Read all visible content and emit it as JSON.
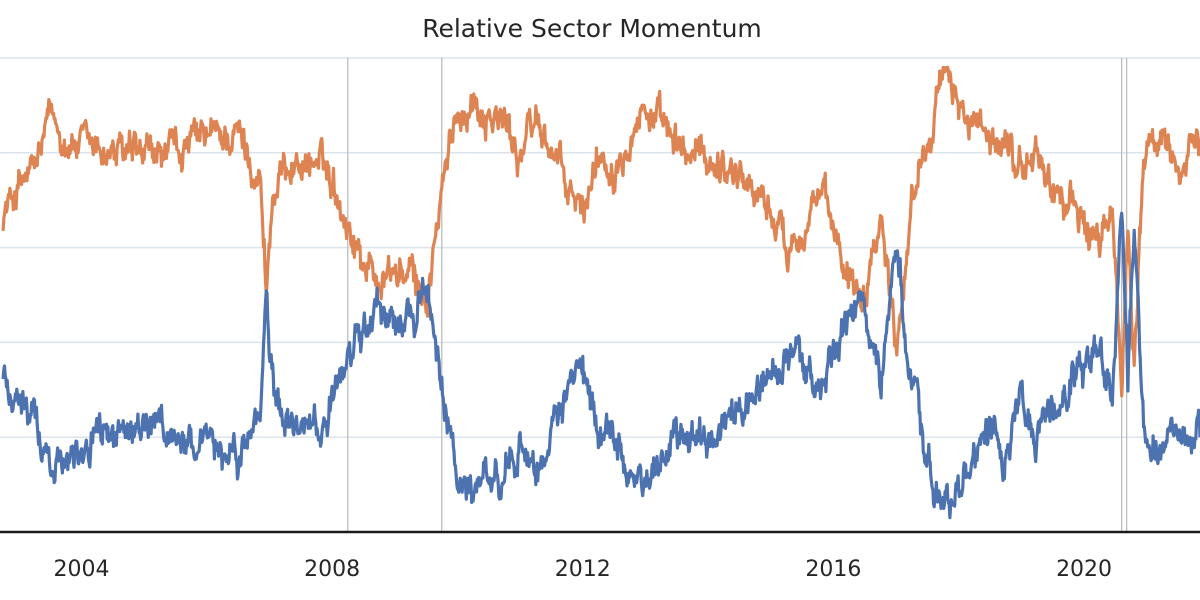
{
  "chart_data": {
    "type": "line",
    "title": "Relative Sector Momentum",
    "xlabel": "",
    "ylabel": "",
    "xlim": [
      2002.7,
      2021.85
    ],
    "ylim": [
      0,
      1
    ],
    "x_ticks": [
      "2004",
      "2008",
      "2012",
      "2016",
      "2020"
    ],
    "grid": true,
    "legend": "none",
    "vlines": [
      2008.25,
      2009.75,
      2020.6,
      2020.68
    ],
    "colors": {
      "orange": "#dd8452",
      "blue": "#4c72b0",
      "grid": "#dbe3ec",
      "vline": "#b8b8b8",
      "axis": "#1a1a1a"
    },
    "series": [
      {
        "color": "orange",
        "x": [
          2002.75,
          2003.0,
          2003.25,
          2003.5,
          2003.75,
          2004.0,
          2004.5,
          2005.0,
          2005.5,
          2006.0,
          2006.5,
          2006.85,
          2006.95,
          2007.05,
          2007.3,
          2007.75,
          2008.0,
          2008.4,
          2008.75,
          2009.0,
          2009.3,
          2009.5,
          2009.75,
          2010.0,
          2010.25,
          2010.75,
          2011.0,
          2011.25,
          2011.5,
          2011.75,
          2012.0,
          2012.25,
          2012.5,
          2012.75,
          2013.0,
          2013.25,
          2013.5,
          2014.0,
          2014.5,
          2015.0,
          2015.25,
          2015.5,
          2015.75,
          2016.0,
          2016.25,
          2016.5,
          2016.75,
          2017.0,
          2017.25,
          2017.5,
          2017.75,
          2018.0,
          2018.25,
          2018.5,
          2018.75,
          2019.0,
          2019.25,
          2019.5,
          2019.75,
          2020.0,
          2020.25,
          2020.45,
          2020.6,
          2020.7,
          2020.8,
          2020.95,
          2021.2,
          2021.5,
          2021.85
        ],
        "y": [
          0.67,
          0.73,
          0.76,
          0.87,
          0.83,
          0.81,
          0.8,
          0.78,
          0.8,
          0.83,
          0.84,
          0.75,
          0.52,
          0.7,
          0.78,
          0.78,
          0.75,
          0.6,
          0.53,
          0.55,
          0.53,
          0.48,
          0.71,
          0.89,
          0.91,
          0.86,
          0.8,
          0.87,
          0.81,
          0.72,
          0.67,
          0.8,
          0.78,
          0.86,
          0.9,
          0.85,
          0.8,
          0.79,
          0.76,
          0.68,
          0.6,
          0.65,
          0.72,
          0.63,
          0.55,
          0.52,
          0.68,
          0.4,
          0.7,
          0.85,
          0.95,
          0.92,
          0.85,
          0.8,
          0.83,
          0.76,
          0.8,
          0.72,
          0.69,
          0.66,
          0.58,
          0.7,
          0.3,
          0.66,
          0.37,
          0.8,
          0.82,
          0.78,
          0.8
        ]
      },
      {
        "color": "blue",
        "x": [
          2002.75,
          2003.0,
          2003.25,
          2003.5,
          2003.75,
          2004.0,
          2004.5,
          2005.0,
          2005.5,
          2006.0,
          2006.5,
          2006.85,
          2006.95,
          2007.05,
          2007.3,
          2007.75,
          2008.0,
          2008.4,
          2008.75,
          2009.0,
          2009.3,
          2009.5,
          2009.75,
          2010.0,
          2010.25,
          2010.75,
          2011.0,
          2011.25,
          2011.5,
          2011.75,
          2012.0,
          2012.25,
          2012.5,
          2012.75,
          2013.0,
          2013.25,
          2013.5,
          2014.0,
          2014.5,
          2015.0,
          2015.25,
          2015.5,
          2015.75,
          2016.0,
          2016.25,
          2016.5,
          2016.75,
          2017.0,
          2017.25,
          2017.5,
          2017.75,
          2018.0,
          2018.25,
          2018.5,
          2018.75,
          2019.0,
          2019.25,
          2019.5,
          2019.75,
          2020.0,
          2020.25,
          2020.45,
          2020.6,
          2020.7,
          2020.8,
          2020.95,
          2021.2,
          2021.5,
          2021.85
        ],
        "y": [
          0.33,
          0.27,
          0.24,
          0.13,
          0.17,
          0.19,
          0.2,
          0.22,
          0.2,
          0.17,
          0.16,
          0.25,
          0.48,
          0.3,
          0.22,
          0.22,
          0.25,
          0.4,
          0.47,
          0.45,
          0.47,
          0.52,
          0.29,
          0.11,
          0.09,
          0.14,
          0.2,
          0.13,
          0.19,
          0.28,
          0.33,
          0.2,
          0.22,
          0.14,
          0.1,
          0.15,
          0.2,
          0.21,
          0.24,
          0.32,
          0.4,
          0.35,
          0.28,
          0.37,
          0.45,
          0.48,
          0.32,
          0.6,
          0.3,
          0.15,
          0.05,
          0.08,
          0.15,
          0.2,
          0.17,
          0.24,
          0.2,
          0.28,
          0.31,
          0.34,
          0.42,
          0.3,
          0.7,
          0.34,
          0.63,
          0.2,
          0.18,
          0.22,
          0.2
        ]
      }
    ]
  }
}
